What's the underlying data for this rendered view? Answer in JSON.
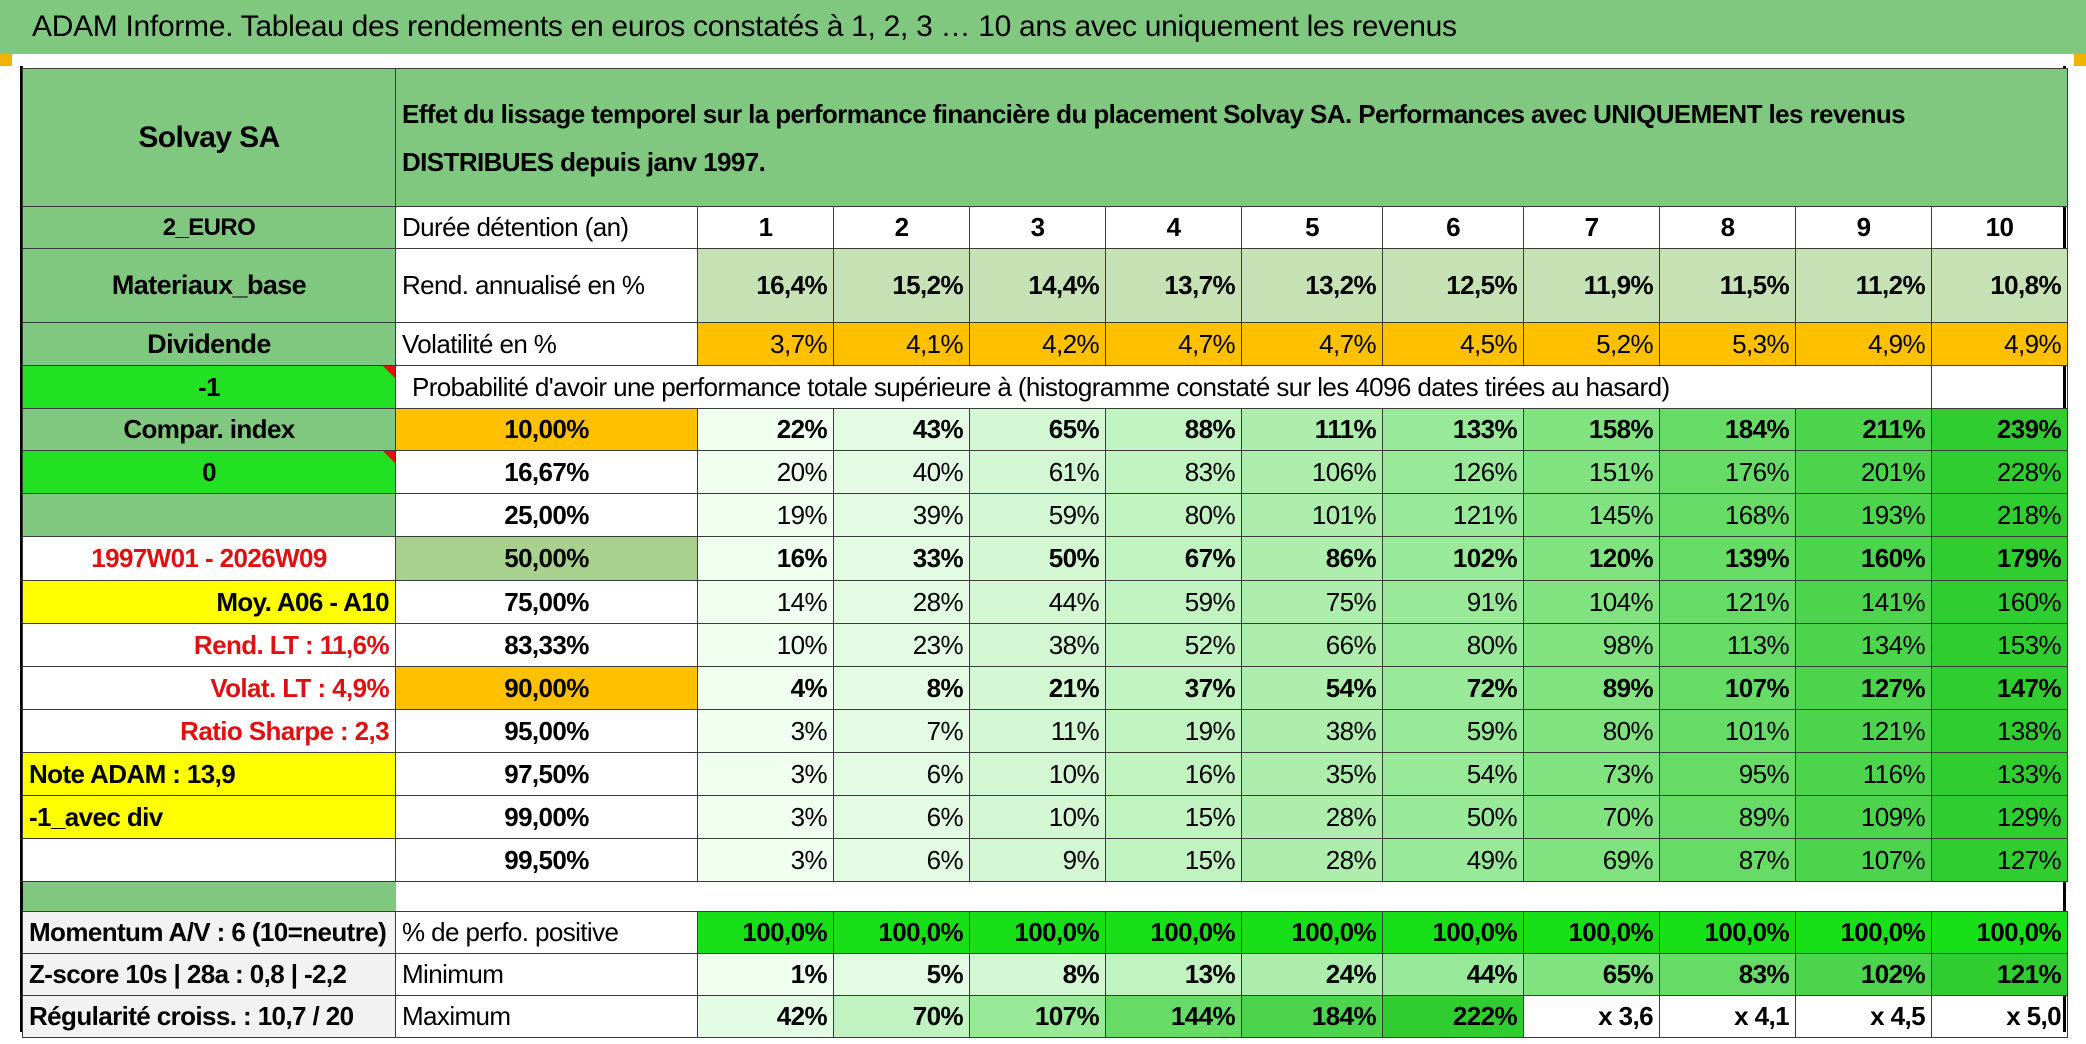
{
  "title": "ADAM Informe. Tableau des rendements en euros constatés à 1, 2, 3 … 10 ans avec uniquement les revenus",
  "left": {
    "name": "Solvay SA",
    "currency": "2_EURO",
    "sector": "Materiaux_base",
    "type": "Dividende",
    "flag1": "-1",
    "compar_label": "Compar. index",
    "flag2": "0",
    "period": "1997W01 - 2026W09",
    "moy": "Moy. A06 - A10",
    "rend_lt": "Rend. LT :    11,6%",
    "volat_lt": "Volat. LT :    4,9%",
    "sharpe": "Ratio Sharpe :    2,3",
    "note": "Note ADAM : 13,9",
    "avec_div": "-1_avec div"
  },
  "description": "Effet du lissage temporel sur la performance financière du placement Solvay SA. Performances avec UNIQUEMENT les revenus DISTRIBUES depuis janv 1997.",
  "duree_label": "Durée détention (an)",
  "years": [
    "1",
    "2",
    "3",
    "4",
    "5",
    "6",
    "7",
    "8",
    "9",
    "10"
  ],
  "rend_label": "Rend. annualisé en %",
  "rend": [
    "16,4%",
    "15,2%",
    "14,4%",
    "13,7%",
    "13,2%",
    "12,5%",
    "11,9%",
    "11,5%",
    "11,2%",
    "10,8%"
  ],
  "vol_label": "Volatilité en %",
  "vol": [
    "3,7%",
    "4,1%",
    "4,2%",
    "4,7%",
    "4,7%",
    "4,5%",
    "5,2%",
    "5,3%",
    "4,9%",
    "4,9%"
  ],
  "prob_label": "Probabilité d'avoir une performance totale supérieure à (histogramme constaté sur les 4096 dates tirées au hasard)",
  "quantiles": [
    {
      "p": "10,00%",
      "v": [
        "22%",
        "43%",
        "65%",
        "88%",
        "111%",
        "133%",
        "158%",
        "184%",
        "211%",
        "239%"
      ]
    },
    {
      "p": "16,67%",
      "v": [
        "20%",
        "40%",
        "61%",
        "83%",
        "106%",
        "126%",
        "151%",
        "176%",
        "201%",
        "228%"
      ]
    },
    {
      "p": "25,00%",
      "v": [
        "19%",
        "39%",
        "59%",
        "80%",
        "101%",
        "121%",
        "145%",
        "168%",
        "193%",
        "218%"
      ]
    },
    {
      "p": "50,00%",
      "v": [
        "16%",
        "33%",
        "50%",
        "67%",
        "86%",
        "102%",
        "120%",
        "139%",
        "160%",
        "179%"
      ]
    },
    {
      "p": "75,00%",
      "v": [
        "14%",
        "28%",
        "44%",
        "59%",
        "75%",
        "91%",
        "104%",
        "121%",
        "141%",
        "160%"
      ]
    },
    {
      "p": "83,33%",
      "v": [
        "10%",
        "23%",
        "38%",
        "52%",
        "66%",
        "80%",
        "98%",
        "113%",
        "134%",
        "153%"
      ]
    },
    {
      "p": "90,00%",
      "v": [
        "4%",
        "8%",
        "21%",
        "37%",
        "54%",
        "72%",
        "89%",
        "107%",
        "127%",
        "147%"
      ]
    },
    {
      "p": "95,00%",
      "v": [
        "3%",
        "7%",
        "11%",
        "19%",
        "38%",
        "59%",
        "80%",
        "101%",
        "121%",
        "138%"
      ]
    },
    {
      "p": "97,50%",
      "v": [
        "3%",
        "6%",
        "10%",
        "16%",
        "35%",
        "54%",
        "73%",
        "95%",
        "116%",
        "133%"
      ]
    },
    {
      "p": "99,00%",
      "v": [
        "3%",
        "6%",
        "10%",
        "15%",
        "28%",
        "50%",
        "70%",
        "89%",
        "109%",
        "129%"
      ]
    },
    {
      "p": "99,50%",
      "v": [
        "3%",
        "6%",
        "9%",
        "15%",
        "28%",
        "49%",
        "69%",
        "87%",
        "107%",
        "127%"
      ]
    }
  ],
  "bottom": {
    "momentum": "Momentum A/V : 6 (10=neutre)",
    "zscore": "Z-score 10s | 28a : 0,8 | -2,2",
    "regularite": "Régularité croiss. : 10,7 / 20",
    "pos_label": "% de perfo. positive",
    "pos": [
      "100,0%",
      "100,0%",
      "100,0%",
      "100,0%",
      "100,0%",
      "100,0%",
      "100,0%",
      "100,0%",
      "100,0%",
      "100,0%"
    ],
    "min_label": "Minimum",
    "min": [
      "1%",
      "5%",
      "8%",
      "13%",
      "24%",
      "44%",
      "65%",
      "83%",
      "102%",
      "121%"
    ],
    "max_label": "Maximum",
    "max": [
      "42%",
      "70%",
      "107%",
      "144%",
      "184%",
      "222%",
      "x 3,6",
      "x 4,1",
      "x 4,5",
      "x 5,0"
    ]
  }
}
